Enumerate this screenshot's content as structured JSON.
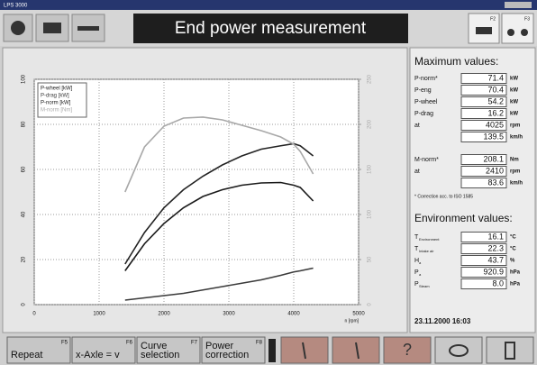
{
  "window_title": "LPS 3000",
  "header": {
    "title": "End power measurement",
    "keys": [
      "F2",
      "F3"
    ]
  },
  "chart_data": {
    "type": "line",
    "legend": "upper left",
    "grid": true,
    "xlabel": "n [rpm]",
    "x": [
      1400,
      1700,
      2000,
      2300,
      2600,
      2900,
      3200,
      3500,
      3800,
      4000,
      4100,
      4300
    ],
    "xlim": [
      0,
      5000
    ],
    "xticks": [
      0,
      1000,
      2000,
      3000,
      4000,
      5000
    ],
    "ylim": [
      0,
      100
    ],
    "yticks": [
      0,
      20,
      40,
      60,
      80,
      100
    ],
    "y2lim": [
      0,
      250
    ],
    "y2ticks": [
      0,
      50,
      100,
      150,
      200,
      250
    ],
    "series": [
      {
        "name": "P-wheel [kW]",
        "color": "#1a1a1a",
        "values": [
          15,
          27,
          36,
          43,
          48,
          51,
          53,
          54,
          54.2,
          53,
          52,
          46
        ]
      },
      {
        "name": "P-drag [kW]",
        "color": "#3a3a3a",
        "values": [
          2,
          3,
          4,
          5,
          6.5,
          8,
          9.5,
          11,
          13,
          14.5,
          15,
          16.2
        ]
      },
      {
        "name": "P-norm [kW]",
        "color": "#222222",
        "values": [
          18,
          32,
          43,
          51,
          57,
          62,
          66,
          69,
          70.5,
          71.4,
          70.5,
          66
        ]
      },
      {
        "name": "M-norm [Nm]",
        "color": "#a8a8a8",
        "axis": "y2",
        "values": [
          125,
          175,
          198,
          207,
          208.1,
          205,
          199,
          193,
          186,
          178,
          170,
          145
        ]
      }
    ]
  },
  "max_values": {
    "title": "Maximum values:",
    "rows": [
      {
        "label": "P-norm*",
        "value": "71.4",
        "unit": "kW"
      },
      {
        "label": "P-eng",
        "value": "70.4",
        "unit": "kW"
      },
      {
        "label": "P-wheel",
        "value": "54.2",
        "unit": "kW"
      },
      {
        "label": "P-drag",
        "value": "16.2",
        "unit": "kW"
      },
      {
        "label": "at",
        "value": "4025",
        "unit": "rpm"
      },
      {
        "value": "139.5",
        "unit": "km/h"
      }
    ],
    "torque_rows": [
      {
        "label": "M-norm*",
        "value": "208.1",
        "unit": "Nm"
      },
      {
        "label": "at",
        "value": "2410",
        "unit": "rpm"
      },
      {
        "value": "83.6",
        "unit": "km/h"
      }
    ],
    "note": "* Correction acc. to ISO 1585"
  },
  "environment": {
    "title": "Environment values:",
    "rows": [
      {
        "label": "T",
        "sub": "Environment",
        "value": "16.1",
        "unit": "°C"
      },
      {
        "label": "T",
        "sub": "Intake air",
        "value": "22.3",
        "unit": "°C"
      },
      {
        "label": "H",
        "sub": "a",
        "value": "43.7",
        "unit": "%"
      },
      {
        "label": "P",
        "sub": "a",
        "value": "920.9",
        "unit": "hPa"
      },
      {
        "label": "P",
        "sub": "Steam",
        "value": "8.0",
        "unit": "hPa"
      }
    ]
  },
  "timestamp": "23.11.2000 16:03",
  "buttons": [
    {
      "lines": [
        "Repeat"
      ],
      "key": "F5"
    },
    {
      "lines": [
        "x-Axle = v"
      ],
      "key": "F6"
    },
    {
      "lines": [
        "Curve",
        "selection"
      ],
      "key": "F7"
    },
    {
      "lines": [
        "Power",
        "correction"
      ],
      "key": "F8"
    }
  ]
}
